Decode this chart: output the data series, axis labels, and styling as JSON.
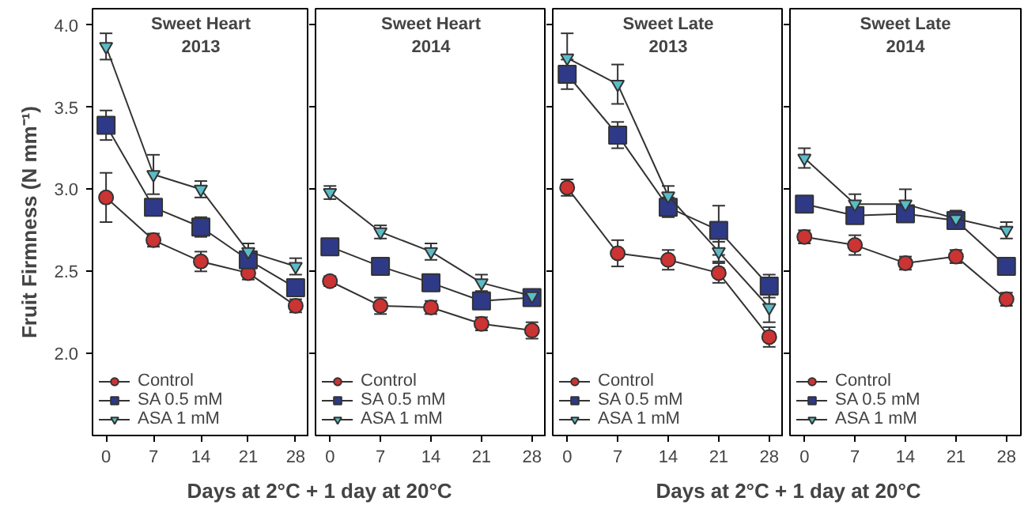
{
  "chart_data": [
    {
      "type": "line",
      "title": "Sweet Heart\n2013",
      "ylabel": "Fruit Firmness (N mm⁻¹)",
      "x": [
        0,
        7,
        14,
        21,
        28
      ],
      "xlim": [
        -2,
        30
      ],
      "xticks": [
        0,
        7,
        14,
        21,
        28
      ],
      "ylim": [
        1.5,
        4.1
      ],
      "yticks": [
        {
          "value": 2.0,
          "label": "2.0"
        },
        {
          "value": 2.5,
          "label": "2.5"
        },
        {
          "value": 3.0,
          "label": "3.0"
        },
        {
          "value": 3.5,
          "label": "3.5"
        },
        {
          "value": 4.0,
          "label": "4.0"
        }
      ],
      "xlabel": "Days at 2°C + 1 day at 20°C",
      "legend": "bottom left",
      "grid": false,
      "series": [
        {
          "name": "Control",
          "color": "#cc3333",
          "marker": "circle",
          "values": [
            2.95,
            2.69,
            2.56,
            2.49,
            2.29
          ],
          "errors": [
            0.15,
            0.04,
            0.06,
            0.04,
            0.04
          ]
        },
        {
          "name": "SA 0.5 mM",
          "color": "#2e3a87",
          "marker": "square",
          "values": [
            3.39,
            2.89,
            2.77,
            2.57,
            2.4
          ],
          "errors": [
            0.09,
            0.04,
            0.06,
            0.04,
            0.04
          ]
        },
        {
          "name": "ASA 1 mM",
          "color": "#5bbcc8",
          "marker": "triangle",
          "values": [
            3.87,
            3.09,
            3.0,
            2.62,
            2.53
          ],
          "errors": [
            0.08,
            0.12,
            0.05,
            0.05,
            0.05
          ]
        }
      ]
    },
    {
      "type": "line",
      "title": "Sweet Heart\n2014",
      "x": [
        0,
        7,
        14,
        21,
        28
      ],
      "xlim": [
        -2,
        30
      ],
      "xticks": [
        0,
        7,
        14,
        21,
        28
      ],
      "ylim": [
        1.5,
        4.1
      ],
      "yticks": [
        2.0,
        2.5,
        3.0,
        3.5,
        4.0
      ],
      "tick_labels": "x",
      "legend": "bottom left",
      "grid": false,
      "series": [
        {
          "name": "Control",
          "color": "#cc3333",
          "marker": "circle",
          "values": [
            2.44,
            2.29,
            2.28,
            2.18,
            2.14
          ],
          "errors": [
            0.03,
            0.05,
            0.04,
            0.04,
            0.05
          ]
        },
        {
          "name": "SA 0.5 mM",
          "color": "#2e3a87",
          "marker": "square",
          "values": [
            2.65,
            2.53,
            2.43,
            2.32,
            2.34
          ],
          "errors": [
            0.03,
            0.04,
            0.05,
            0.04,
            0.04
          ]
        },
        {
          "name": "ASA 1 mM",
          "color": "#5bbcc8",
          "marker": "triangle",
          "values": [
            2.98,
            2.74,
            2.62,
            2.43,
            2.35
          ],
          "errors": [
            0.04,
            0.04,
            0.05,
            0.05,
            0.04
          ]
        }
      ]
    },
    {
      "type": "line",
      "title": "Sweet Late\n2013",
      "x": [
        0,
        7,
        14,
        21,
        28
      ],
      "xlim": [
        -2,
        30
      ],
      "xticks": [
        0,
        7,
        14,
        21,
        28
      ],
      "ylim": [
        1.5,
        4.1
      ],
      "yticks": [
        2.0,
        2.5,
        3.0,
        3.5,
        4.0
      ],
      "tick_labels": "x",
      "xlabel": "Days at 2°C + 1 day at 20°C",
      "legend": "bottom left",
      "grid": false,
      "series": [
        {
          "name": "Control",
          "color": "#cc3333",
          "marker": "circle",
          "values": [
            3.01,
            2.61,
            2.57,
            2.49,
            2.1
          ],
          "errors": [
            0.05,
            0.08,
            0.06,
            0.06,
            0.06
          ]
        },
        {
          "name": "SA 0.5 mM",
          "color": "#2e3a87",
          "marker": "square",
          "values": [
            3.7,
            3.33,
            2.89,
            2.75,
            2.41
          ],
          "errors": [
            0.09,
            0.08,
            0.06,
            0.15,
            0.07
          ]
        },
        {
          "name": "ASA 1 mM",
          "color": "#5bbcc8",
          "marker": "triangle",
          "values": [
            3.8,
            3.64,
            2.96,
            2.62,
            2.28
          ],
          "errors": [
            0.15,
            0.12,
            0.06,
            0.06,
            0.09
          ]
        }
      ]
    },
    {
      "type": "line",
      "title": "Sweet Late\n2014",
      "x": [
        0,
        7,
        14,
        21,
        28
      ],
      "xlim": [
        -2,
        30
      ],
      "xticks": [
        0,
        7,
        14,
        21,
        28
      ],
      "ylim": [
        1.5,
        4.1
      ],
      "yticks": [
        2.0,
        2.5,
        3.0,
        3.5,
        4.0
      ],
      "tick_labels": "x",
      "legend": "bottom left",
      "grid": false,
      "series": [
        {
          "name": "Control",
          "color": "#cc3333",
          "marker": "circle",
          "values": [
            2.71,
            2.66,
            2.55,
            2.59,
            2.33
          ],
          "errors": [
            0.04,
            0.06,
            0.04,
            0.04,
            0.04
          ]
        },
        {
          "name": "SA 0.5 mM",
          "color": "#2e3a87",
          "marker": "square",
          "values": [
            2.91,
            2.84,
            2.85,
            2.81,
            2.53
          ],
          "errors": [
            0.04,
            0.05,
            0.05,
            0.05,
            0.05
          ]
        },
        {
          "name": "ASA 1 mM",
          "color": "#5bbcc8",
          "marker": "triangle",
          "values": [
            3.19,
            2.91,
            2.91,
            2.82,
            2.75
          ],
          "errors": [
            0.06,
            0.06,
            0.09,
            0.05,
            0.05
          ]
        }
      ]
    }
  ]
}
